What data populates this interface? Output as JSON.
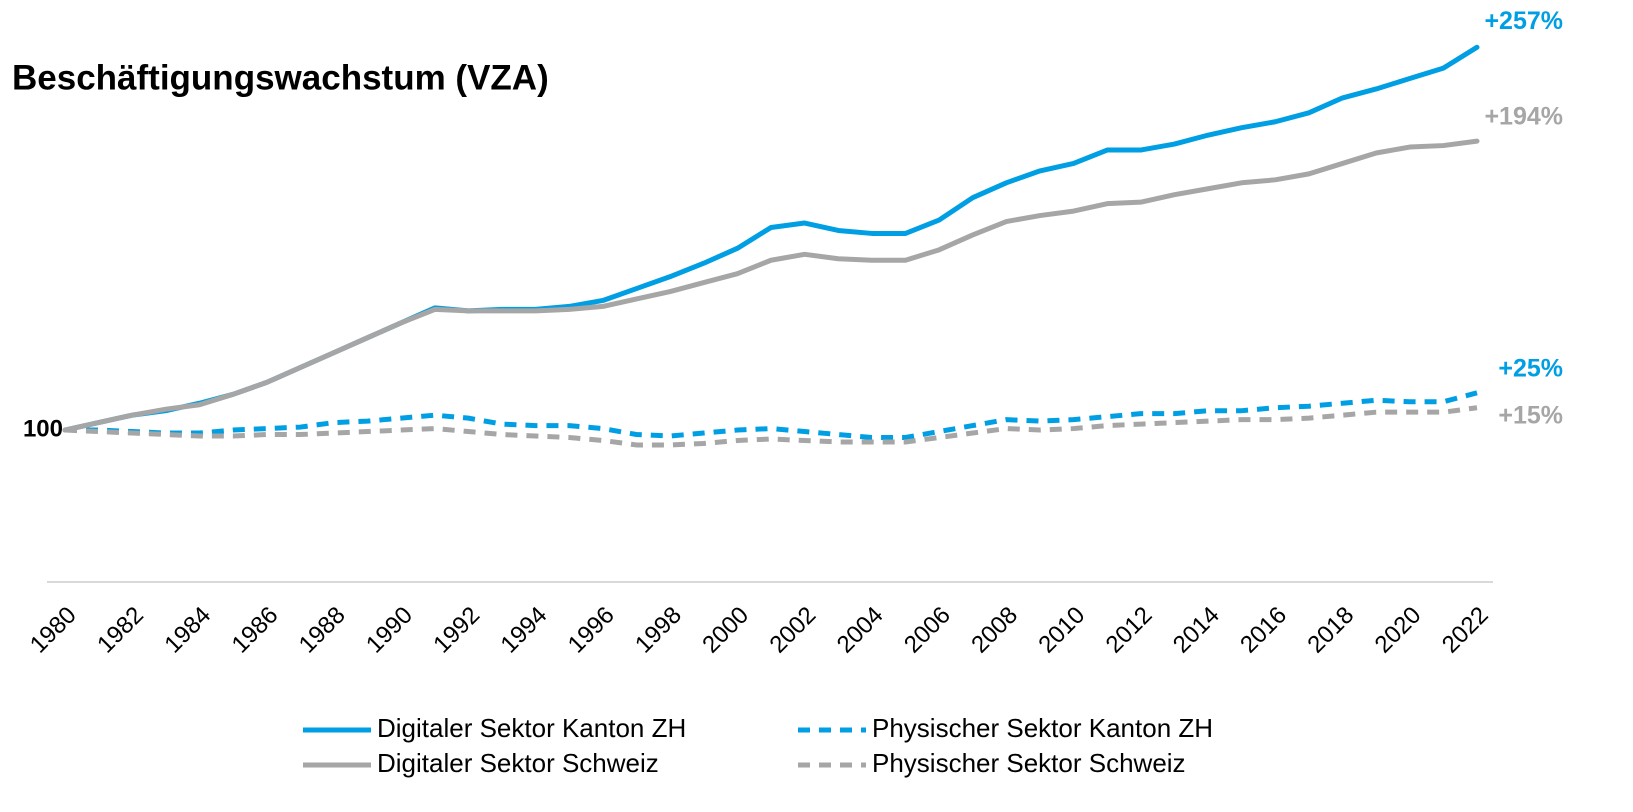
{
  "chart_data": {
    "type": "line",
    "title": "Beschäftigungswachstum (VZA)",
    "x": [
      1980,
      1981,
      1982,
      1983,
      1984,
      1985,
      1986,
      1987,
      1988,
      1989,
      1990,
      1991,
      1992,
      1993,
      1994,
      1995,
      1996,
      1997,
      1998,
      1999,
      2000,
      2001,
      2002,
      2003,
      2004,
      2005,
      2006,
      2007,
      2008,
      2009,
      2010,
      2011,
      2012,
      2013,
      2014,
      2015,
      2016,
      2017,
      2018,
      2019,
      2020,
      2021,
      2022
    ],
    "xlim": [
      1980,
      2022
    ],
    "xticks": [
      1980,
      1982,
      1984,
      1986,
      1988,
      1990,
      1992,
      1994,
      1996,
      1998,
      2000,
      2002,
      2004,
      2006,
      2008,
      2010,
      2012,
      2014,
      2016,
      2018,
      2020,
      2022
    ],
    "ylim": [
      0,
      380
    ],
    "yticks": [
      100
    ],
    "grid": false,
    "legend": "bottom",
    "series": [
      {
        "name": "Digitaler Sektor Kanton ZH",
        "color": "#009fe3",
        "dashed": false,
        "end_label": "+257%",
        "values": [
          100,
          105,
          110,
          113,
          118,
          124,
          132,
          142,
          152,
          162,
          172,
          182,
          180,
          181,
          181,
          183,
          187,
          195,
          203,
          212,
          222,
          236,
          239,
          234,
          232,
          232,
          241,
          256,
          266,
          274,
          279,
          288,
          288,
          292,
          298,
          303,
          307,
          313,
          323,
          329,
          336,
          343,
          357
        ]
      },
      {
        "name": "Physischer Sektor Kanton ZH",
        "color": "#009fe3",
        "dashed": true,
        "end_label": "+25%",
        "values": [
          100,
          100,
          99,
          98,
          98,
          100,
          101,
          102,
          105,
          106,
          108,
          110,
          108,
          104,
          103,
          103,
          101,
          97,
          96,
          98,
          100,
          101,
          99,
          97,
          95,
          95,
          99,
          103,
          107,
          106,
          107,
          109,
          111,
          111,
          113,
          113,
          115,
          116,
          118,
          120,
          119,
          119,
          125
        ]
      },
      {
        "name": "Digitaler Sektor Schweiz",
        "color": "#a6a6a6",
        "dashed": false,
        "end_label": "+194%",
        "values": [
          100,
          105,
          110,
          114,
          117,
          124,
          132,
          142,
          152,
          162,
          172,
          181,
          180,
          180,
          180,
          181,
          183,
          188,
          193,
          199,
          205,
          214,
          218,
          215,
          214,
          214,
          221,
          231,
          240,
          244,
          247,
          252,
          253,
          258,
          262,
          266,
          268,
          272,
          279,
          286,
          290,
          291,
          294
        ]
      },
      {
        "name": "Physischer Sektor Schweiz",
        "color": "#a6a6a6",
        "dashed": true,
        "end_label": "+15%",
        "values": [
          100,
          99,
          98,
          97,
          96,
          96,
          97,
          97,
          98,
          99,
          100,
          101,
          99,
          97,
          96,
          95,
          93,
          90,
          90,
          91,
          93,
          94,
          93,
          92,
          92,
          92,
          95,
          98,
          101,
          100,
          101,
          103,
          104,
          105,
          106,
          107,
          107,
          108,
          110,
          112,
          112,
          112,
          115
        ]
      }
    ]
  }
}
